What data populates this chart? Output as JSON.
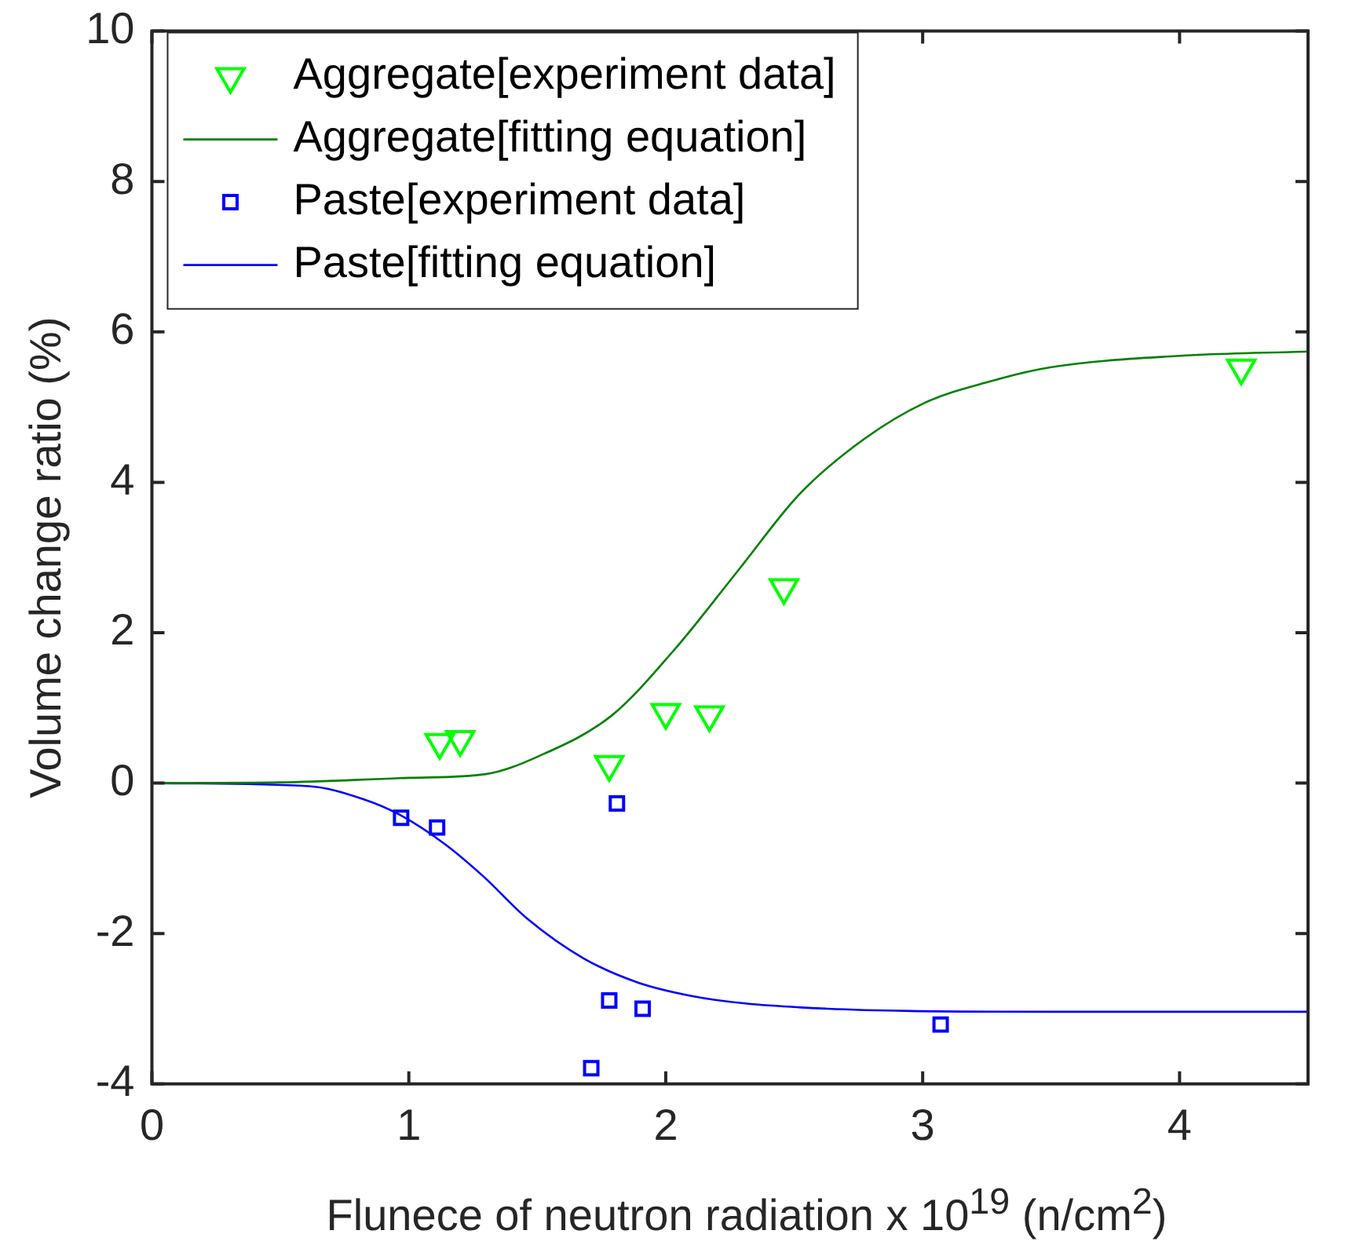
{
  "chart_data": {
    "type": "scatter",
    "xlabel": "Flunece of neutron radiation x 10$^{19}$ (n/cm$^{2}$)",
    "ylabel": "Volume change ratio (%)",
    "xlim": [
      0,
      4.5
    ],
    "xticks": [
      0,
      1,
      2,
      3,
      4
    ],
    "ylim": [
      -4,
      10
    ],
    "yticks": [
      -4,
      -2,
      0,
      2,
      4,
      6,
      8,
      10
    ],
    "legend": "top left",
    "series": [
      {
        "name": "Aggregate[experiment data]",
        "type": "scatter",
        "marker": "triangle",
        "color": "#00ff00",
        "x": [
          1.12,
          1.2,
          1.78,
          2.0,
          2.17,
          2.46,
          4.24
        ],
        "values": [
          0.54,
          0.58,
          0.25,
          0.94,
          0.91,
          2.6,
          5.52
        ]
      },
      {
        "name": "Aggregate[fitting equation]",
        "type": "line",
        "marker": "none",
        "color": "#008000",
        "x": [
          0,
          0.5,
          1.0,
          1.3,
          1.5,
          1.79,
          2.03,
          2.28,
          2.52,
          2.77,
          3.01,
          3.26,
          3.5,
          3.99,
          4.5
        ],
        "values": [
          0,
          0.01,
          0.07,
          0.12,
          0.35,
          0.9,
          1.76,
          2.82,
          3.84,
          4.57,
          5.06,
          5.34,
          5.53,
          5.68,
          5.74
        ]
      },
      {
        "name": "Paste[experiment data]",
        "type": "scatter",
        "marker": "square",
        "color": "#0000ff",
        "x": [
          0.97,
          1.11,
          1.81,
          1.78,
          1.91,
          1.71,
          3.07
        ],
        "values": [
          -0.46,
          -0.59,
          -0.27,
          -2.89,
          -3.0,
          -3.79,
          -3.21
        ]
      },
      {
        "name": "Paste[fitting equation]",
        "type": "line",
        "marker": "none",
        "color": "#0000ff",
        "x": [
          0,
          0.61,
          0.82,
          0.97,
          1.14,
          1.29,
          1.46,
          1.68,
          1.89,
          2.1,
          2.31,
          2.63,
          2.95,
          3.5,
          4.5
        ],
        "values": [
          0,
          -0.04,
          -0.21,
          -0.43,
          -0.81,
          -1.24,
          -1.8,
          -2.33,
          -2.65,
          -2.83,
          -2.93,
          -3.0,
          -3.03,
          -3.04,
          -3.04
        ]
      }
    ]
  }
}
